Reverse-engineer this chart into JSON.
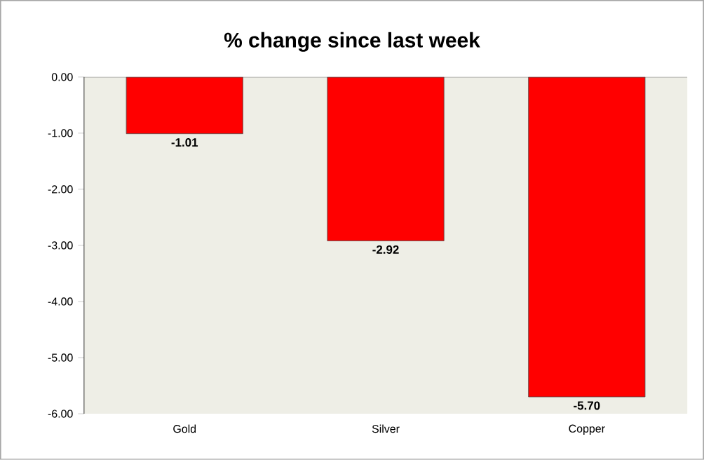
{
  "chart_data": {
    "type": "bar",
    "title": "% change since last week",
    "categories": [
      "Gold",
      "Silver",
      "Copper"
    ],
    "values": [
      -1.01,
      -2.92,
      -5.7
    ],
    "value_labels": [
      "-1.01",
      "-2.92",
      "-5.70"
    ],
    "color": "#ff0000",
    "ylim": [
      -6,
      0
    ],
    "yticks": [
      {
        "value": 0,
        "label": "0.00"
      },
      {
        "value": -1,
        "label": "-1.00"
      },
      {
        "value": -2,
        "label": "-2.00"
      },
      {
        "value": -3,
        "label": "-3.00"
      },
      {
        "value": -4,
        "label": "-4.00"
      },
      {
        "value": -5,
        "label": "-5.00"
      },
      {
        "value": -6,
        "label": "-6.00"
      }
    ],
    "grid": false
  }
}
